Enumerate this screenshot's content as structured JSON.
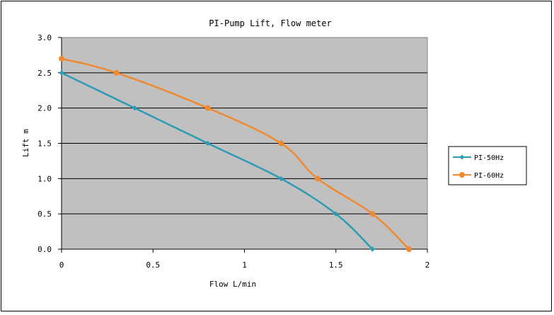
{
  "chart_data": {
    "type": "line",
    "title": "PI-Pump Lift, Flow meter",
    "xlabel": "Flow  L/min",
    "ylabel": "Lift m",
    "xlim": [
      0,
      2
    ],
    "ylim": [
      0,
      3
    ],
    "xticks": [
      "0",
      "0.5",
      "1",
      "1.5",
      "2"
    ],
    "yticks": [
      "0.0",
      "0.5",
      "1.0",
      "1.5",
      "2.0",
      "2.5",
      "3.0"
    ],
    "grid": "horizontal",
    "plot_background": "#c0c0c0",
    "legend_position": "right",
    "series": [
      {
        "name": "PI-50Hz",
        "color": "#2e9bb5",
        "marker": "diamond",
        "points": [
          [
            0,
            2.5
          ],
          [
            0.4,
            2.0
          ],
          [
            0.8,
            1.5
          ],
          [
            1.2,
            1.0
          ],
          [
            1.5,
            0.5
          ],
          [
            1.7,
            0.0
          ]
        ]
      },
      {
        "name": "PI-60Hz",
        "color": "#f08a30",
        "marker": "circle",
        "points": [
          [
            0,
            2.7
          ],
          [
            0.3,
            2.5
          ],
          [
            0.8,
            2.0
          ],
          [
            1.2,
            1.5
          ],
          [
            1.4,
            1.0
          ],
          [
            1.7,
            0.5
          ],
          [
            1.9,
            0.0
          ]
        ]
      }
    ]
  }
}
